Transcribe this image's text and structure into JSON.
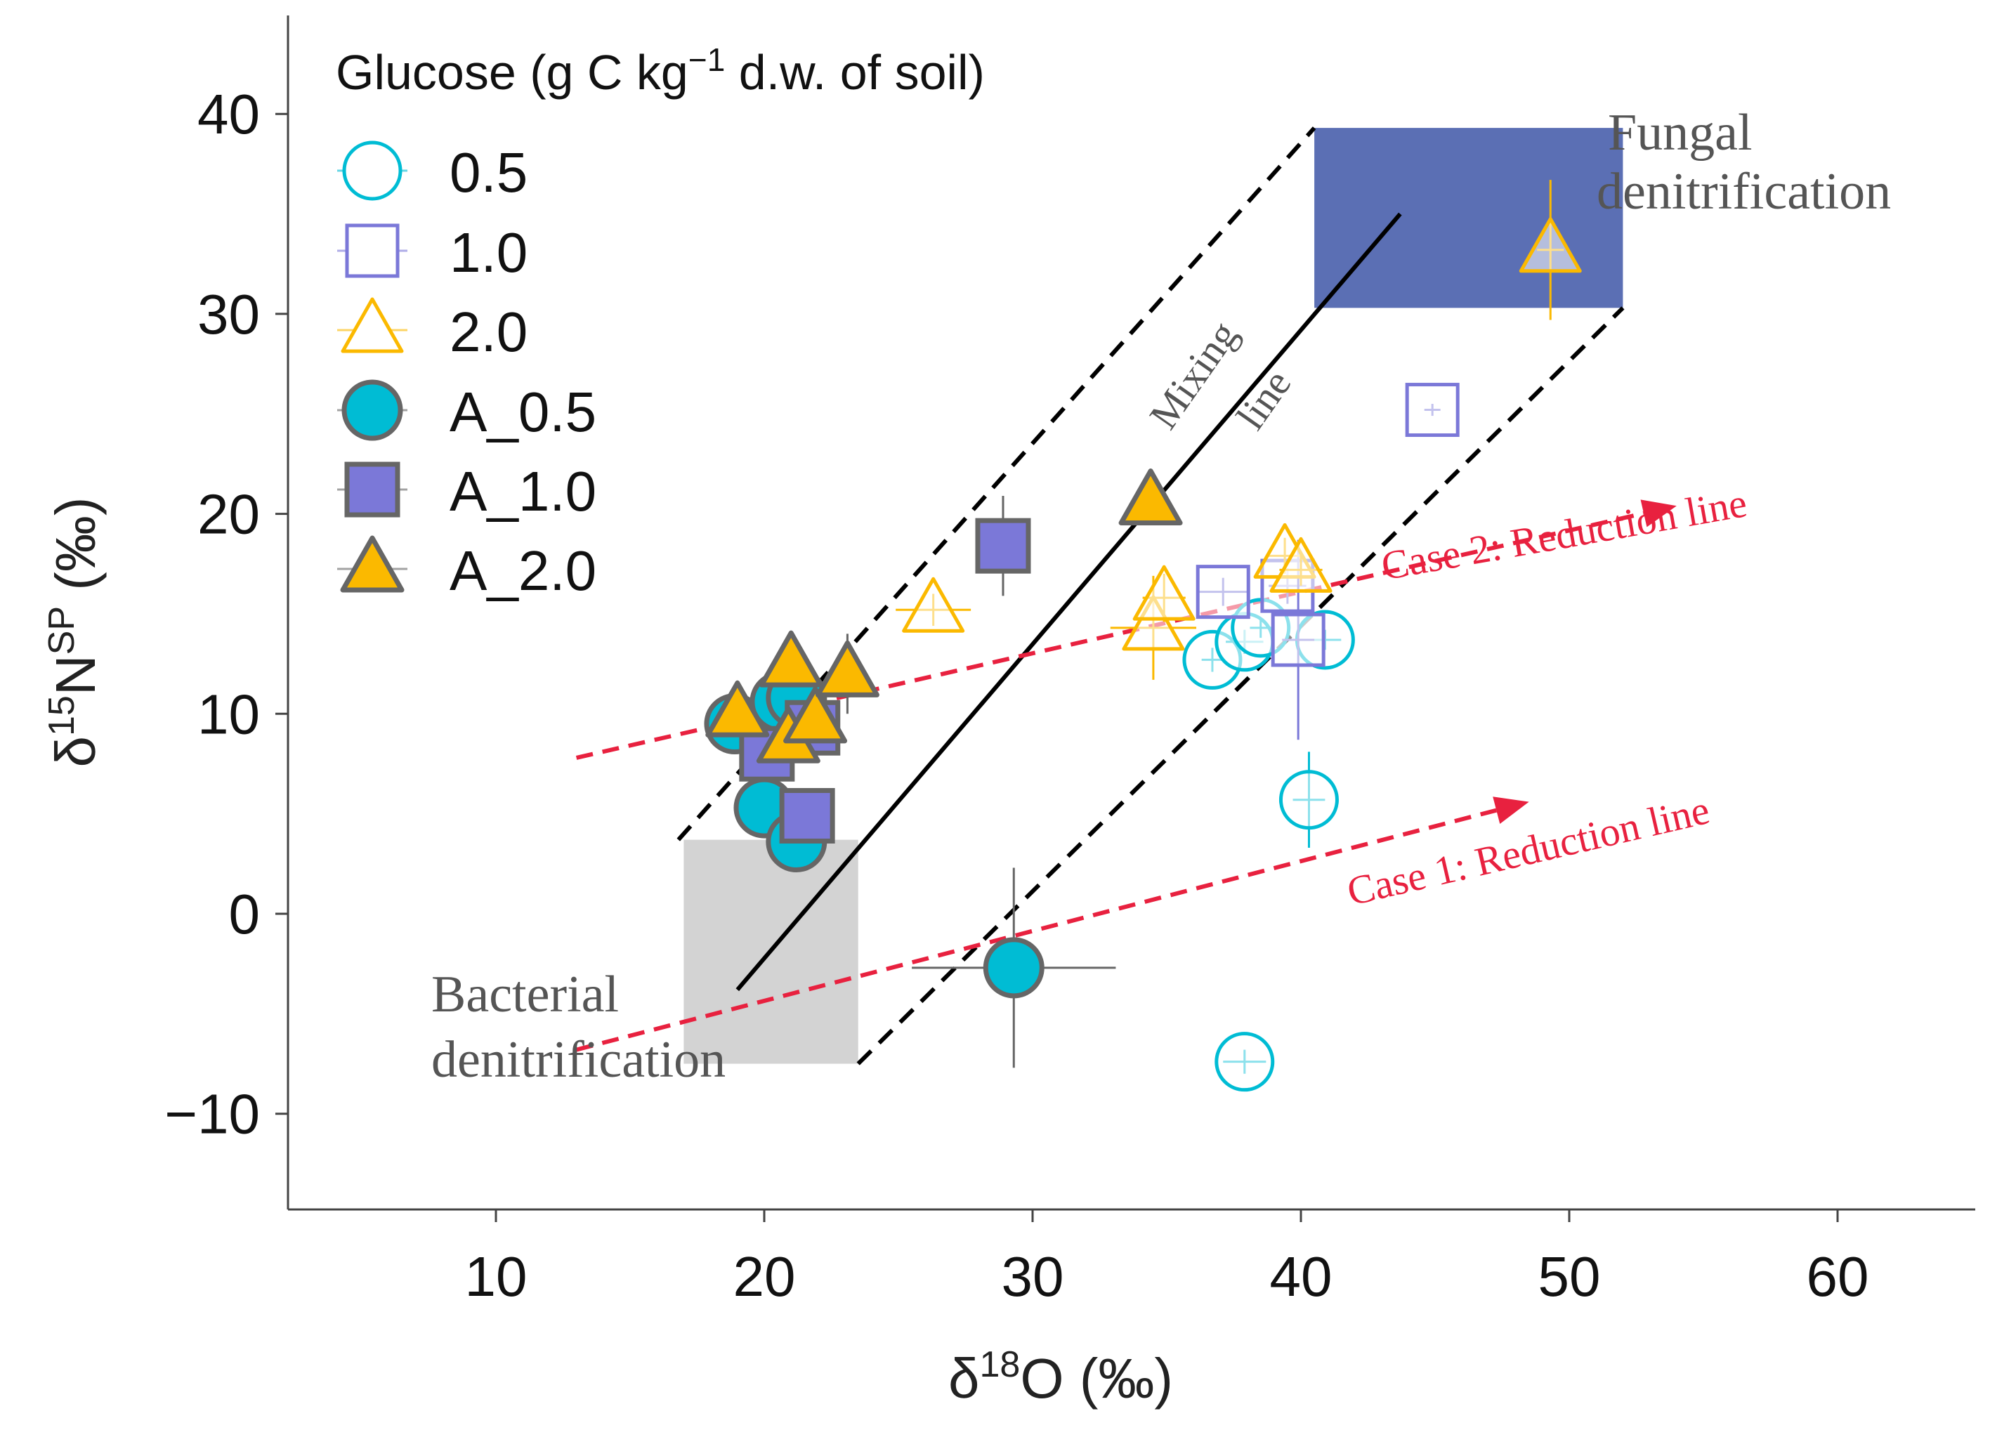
{
  "chart_data": {
    "type": "scatter",
    "title": "",
    "xlabel": "δ18O (‰)",
    "xlabel_parts": {
      "base": "δ",
      "sup": "18",
      "rest": "O (‰)"
    },
    "ylabel": "δ15NSP (‰)",
    "ylabel_parts": {
      "base": "δ",
      "sup1": "15",
      "mid": "N",
      "sup2": "SP",
      "rest": " (‰)"
    },
    "xlim": [
      2,
      65
    ],
    "ylim": [
      -15,
      45
    ],
    "x_ticks": [
      10,
      20,
      30,
      40,
      50,
      60
    ],
    "y_ticks": [
      -10,
      0,
      10,
      20,
      30,
      40
    ],
    "x_tick_labels": [
      "10",
      "20",
      "30",
      "40",
      "50",
      "60"
    ],
    "y_tick_labels": [
      "−10",
      "0",
      "10",
      "20",
      "30",
      "40"
    ],
    "grid": false,
    "legend": {
      "title_prefix": "Glucose (g C kg",
      "title_sup": "−1",
      "title_suffix": " d.w. of soil)",
      "position": "top-left",
      "entries": [
        {
          "label": "0.5",
          "shape": "circle",
          "fill": "#ffffff",
          "stroke": "#00bcd4"
        },
        {
          "label": "1.0",
          "shape": "square",
          "fill": "#ffffff",
          "stroke": "#7b78d8"
        },
        {
          "label": "2.0",
          "shape": "triangle",
          "fill": "#ffffff",
          "stroke": "#fbb900"
        },
        {
          "label": "A_0.5",
          "shape": "circle",
          "fill": "#00bcd4",
          "stroke": "#666666"
        },
        {
          "label": "A_1.0",
          "shape": "square",
          "fill": "#7b78d8",
          "stroke": "#666666"
        },
        {
          "label": "A_2.0",
          "shape": "triangle",
          "fill": "#fbb900",
          "stroke": "#666666"
        }
      ]
    },
    "regions": [
      {
        "name": "Bacterial denitrification",
        "label_line1": "Bacterial",
        "label_line2": "denitrification",
        "x": [
          17,
          23.5
        ],
        "y": [
          -7.5,
          3.7
        ],
        "color": "#d3d3d3"
      },
      {
        "name": "Fungal denitrification",
        "label_line1": "Fungal",
        "label_line2": "denitrification",
        "x": [
          40.5,
          52
        ],
        "y": [
          30.3,
          39.3
        ],
        "color": "#5b6fb4"
      }
    ],
    "mixing_line": {
      "label_line1": "Mixing",
      "label_line2": "line",
      "from": [
        19,
        -3.8
      ],
      "to": [
        43.7,
        35
      ],
      "color": "#000000"
    },
    "mixing_bounds": [
      {
        "from": [
          16.8,
          3.7
        ],
        "to": [
          40.5,
          39.3
        ]
      },
      {
        "from": [
          23.5,
          -7.5
        ],
        "to": [
          52,
          30.3
        ]
      }
    ],
    "reduction_lines": [
      {
        "label": "Case 1: Reduction line",
        "from": [
          13,
          -6.8
        ],
        "to": [
          48.5,
          5.6
        ],
        "color": "#e8213f"
      },
      {
        "label": "Case 2: Reduction line",
        "from": [
          13,
          7.8
        ],
        "to": [
          54,
          20.4
        ],
        "color": "#e8213f"
      }
    ],
    "series": [
      {
        "name": "0.5",
        "points": [
          {
            "x": 36.7,
            "y": 12.7,
            "xerr": 0.4,
            "yerr": 0.6
          },
          {
            "x": 37.9,
            "y": 13.6,
            "xerr": 0.7,
            "yerr": 0.6
          },
          {
            "x": 38.5,
            "y": 14.3,
            "xerr": 0.4,
            "yerr": 0.5
          },
          {
            "x": 40.9,
            "y": 13.7,
            "xerr": 0.6,
            "yerr": 0.5
          },
          {
            "x": 40.3,
            "y": 5.7,
            "xerr": 0.6,
            "yerr": 2.4
          },
          {
            "x": 37.9,
            "y": -7.4,
            "xerr": 0.8,
            "yerr": 0.6
          }
        ]
      },
      {
        "name": "1.0",
        "points": [
          {
            "x": 37.1,
            "y": 16.1,
            "xerr": 0.9,
            "yerr": 0.7
          },
          {
            "x": 39.5,
            "y": 16.4,
            "xerr": 0.7,
            "yerr": 0.9
          },
          {
            "x": 39.9,
            "y": 13.7,
            "xerr": 0.6,
            "yerr": 5
          },
          {
            "x": 44.9,
            "y": 25.2,
            "xerr": 0.3,
            "yerr": 0.3
          }
        ]
      },
      {
        "name": "2.0",
        "points": [
          {
            "x": 26.3,
            "y": 15.2,
            "xerr": 1.4,
            "yerr": 0.8
          },
          {
            "x": 34.5,
            "y": 14.3,
            "xerr": 1.6,
            "yerr": 2.6
          },
          {
            "x": 34.9,
            "y": 15.8,
            "xerr": 0.8,
            "yerr": 1.2
          },
          {
            "x": 39.4,
            "y": 17.9,
            "xerr": 0.7,
            "yerr": 0.9
          },
          {
            "x": 40,
            "y": 17.2,
            "xerr": 0.8,
            "yerr": 0.8
          },
          {
            "x": 49.3,
            "y": 33.2,
            "xerr": 0.5,
            "yerr": 3.5
          }
        ]
      },
      {
        "name": "A_0.5",
        "points": [
          {
            "x": 18.9,
            "y": 9.5,
            "xerr": 0.4,
            "yerr": 0.5
          },
          {
            "x": 20,
            "y": 5.3,
            "xerr": 0.3,
            "yerr": 0.5
          },
          {
            "x": 20.6,
            "y": 10.6,
            "xerr": 0.4,
            "yerr": 0.5
          },
          {
            "x": 21.2,
            "y": 10.8,
            "xerr": 0.4,
            "yerr": 0.5
          },
          {
            "x": 21.2,
            "y": 3.6,
            "xerr": 0.5,
            "yerr": 0.6
          },
          {
            "x": 29.3,
            "y": -2.7,
            "xerr": 3.8,
            "yerr": 5
          }
        ]
      },
      {
        "name": "A_1.0",
        "points": [
          {
            "x": 20.1,
            "y": 8,
            "xerr": 0.4,
            "yerr": 0.5
          },
          {
            "x": 21.8,
            "y": 9.3,
            "xerr": 0.4,
            "yerr": 0.5
          },
          {
            "x": 21.6,
            "y": 4.9,
            "xerr": 0.3,
            "yerr": 0.4
          },
          {
            "x": 28.9,
            "y": 18.4,
            "xerr": 0.4,
            "yerr": 2.5
          }
        ]
      },
      {
        "name": "A_2.0",
        "points": [
          {
            "x": 19,
            "y": 10,
            "xerr": 0.5,
            "yerr": 0.5
          },
          {
            "x": 21,
            "y": 12.5,
            "xerr": 0.5,
            "yerr": 0.6
          },
          {
            "x": 20.9,
            "y": 8.7,
            "xerr": 0.5,
            "yerr": 0.7
          },
          {
            "x": 21.9,
            "y": 9.7,
            "xerr": 0.5,
            "yerr": 0.6
          },
          {
            "x": 23.1,
            "y": 12,
            "xerr": 0.5,
            "yerr": 2
          },
          {
            "x": 34.4,
            "y": 20.6,
            "xerr": 0.6,
            "yerr": 0.6
          }
        ]
      }
    ]
  }
}
